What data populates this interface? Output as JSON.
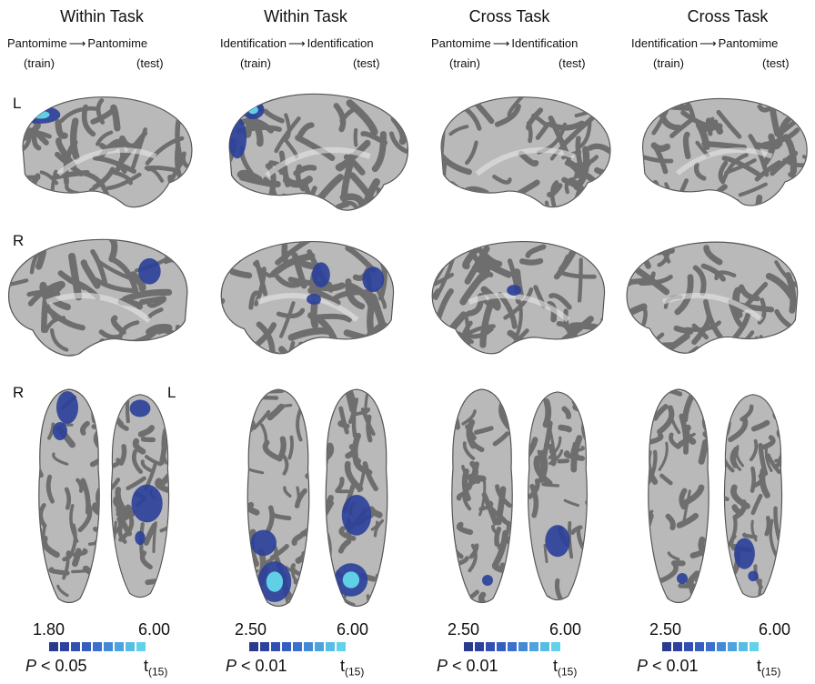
{
  "row_labels": {
    "top": "L",
    "middle": "R",
    "bottom_right": "R",
    "bottom_left": "L"
  },
  "columns": [
    {
      "title": "Within Task",
      "train_task": "Pantomime",
      "test_task": "Pantomime",
      "train_tag": "(train)",
      "test_tag": "(test)",
      "cmin": "1.80",
      "cmax": "6.00",
      "p_prefix": "P",
      "p_rest": " < 0.05",
      "t_label": "t",
      "t_sub": "(15)"
    },
    {
      "title": "Within Task",
      "train_task": "Identification",
      "test_task": "Identification",
      "train_tag": "(train)",
      "test_tag": "(test)",
      "cmin": "2.50",
      "cmax": "6.00",
      "p_prefix": "P",
      "p_rest": " < 0.01",
      "t_label": "t",
      "t_sub": "(15)"
    },
    {
      "title": "Cross Task",
      "train_task": "Pantomime",
      "test_task": "Identification",
      "train_tag": "(train)",
      "test_tag": "(test)",
      "cmin": "2.50",
      "cmax": "6.00",
      "p_prefix": "P",
      "p_rest": " < 0.01",
      "t_label": "t",
      "t_sub": "(15)"
    },
    {
      "title": "Cross Task",
      "train_task": "Identification",
      "test_task": "Pantomime",
      "train_tag": "(train)",
      "test_tag": "(test)",
      "cmin": "2.50",
      "cmax": "6.00",
      "p_prefix": "P",
      "p_rest": " < 0.01",
      "t_label": "t",
      "t_sub": "(15)"
    }
  ],
  "arrow_glyph": "⟶",
  "colors": {
    "cortex_gyri": "#b9b9b9",
    "cortex_sulci": "#6e6e6e",
    "activation_low": "#2b3f99",
    "activation_high": "#5fd0e6",
    "colorbar": [
      "#2a3a8c",
      "#2d42a0",
      "#3150b2",
      "#345fc0",
      "#3b70cc",
      "#438ad6",
      "#4ca3de",
      "#57bde4",
      "#62d2ea"
    ]
  }
}
